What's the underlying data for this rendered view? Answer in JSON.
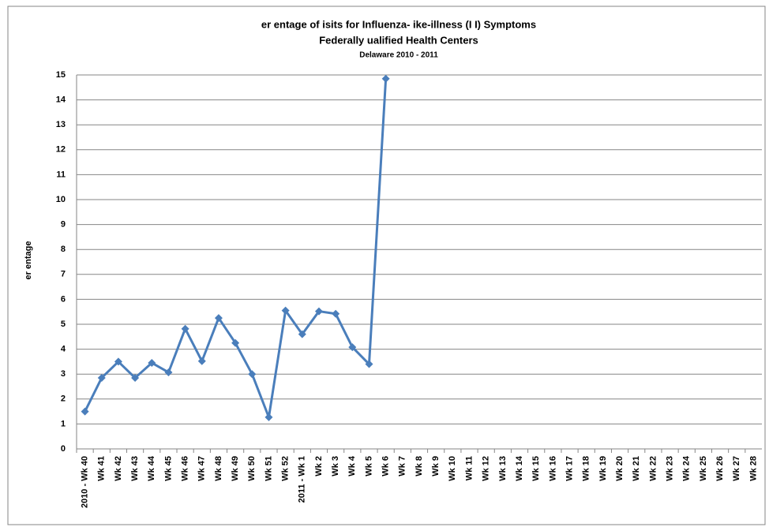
{
  "chart_data": {
    "type": "line",
    "title": "er  entage of   isits for Influenza-  ike-illness (I  I) Symptoms",
    "subtitle": "Federally   ualified Health Centers",
    "subtitle2": "Delaware 2010 - 2011",
    "y_label": "er  entage",
    "categories": [
      "2010 - Wk 40",
      "Wk 41",
      "Wk 42",
      "Wk 43",
      "Wk 44",
      "Wk 45",
      "Wk 46",
      "Wk 47",
      "Wk 48",
      "Wk 49",
      "Wk 50",
      "Wk 51",
      "Wk 52",
      "2011 - Wk 1",
      "Wk 2",
      "Wk 3",
      "Wk 4",
      "Wk 5",
      "Wk 6",
      "Wk 7",
      "Wk 8",
      "Wk 9",
      "Wk 10",
      "Wk 11",
      "Wk 12",
      "Wk 13",
      "Wk 14",
      "Wk 15",
      "Wk 16",
      "Wk 17",
      "Wk 18",
      "Wk 19",
      "Wk 20",
      "Wk 21",
      "Wk 22",
      "Wk 23",
      "Wk 24",
      "Wk 25",
      "Wk 26",
      "Wk 27",
      "Wk 28"
    ],
    "values": [
      1.5,
      2.85,
      3.5,
      2.85,
      3.45,
      3.07,
      4.82,
      3.52,
      5.25,
      4.25,
      3.0,
      1.27,
      5.55,
      4.6,
      5.52,
      5.42,
      4.08,
      3.4,
      14.85,
      null,
      null,
      null,
      null,
      null,
      null,
      null,
      null,
      null,
      null,
      null,
      null,
      null,
      null,
      null,
      null,
      null,
      null,
      null,
      null,
      null,
      null
    ],
    "color": "#4a7ebb",
    "ylim": [
      0,
      15
    ],
    "yticks": [
      0,
      1,
      2,
      3,
      4,
      5,
      6,
      7,
      8,
      9,
      10,
      11,
      12,
      13,
      14,
      15
    ],
    "grid": true
  }
}
